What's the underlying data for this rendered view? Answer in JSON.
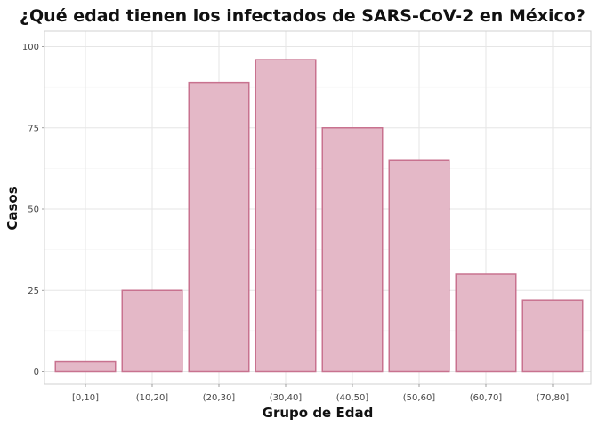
{
  "chart_data": {
    "type": "bar",
    "title": "¿Qué edad tienen los infectados de SARS-CoV-2 en México?",
    "xlabel": "Grupo de Edad",
    "ylabel": "Casos",
    "categories": [
      "[0,10]",
      "(10,20]",
      "(20,30]",
      "(30,40]",
      "(40,50]",
      "(50,60]",
      "(60,70]",
      "(70,80]"
    ],
    "values": [
      3,
      25,
      89,
      96,
      75,
      65,
      30,
      22
    ],
    "ylim": [
      0,
      100
    ],
    "yticks": [
      0,
      25,
      50,
      75,
      100
    ],
    "grid": true,
    "legend": "none",
    "colors": {
      "bar_fill": "#e4b8c7",
      "bar_stroke": "#c8728f"
    }
  }
}
